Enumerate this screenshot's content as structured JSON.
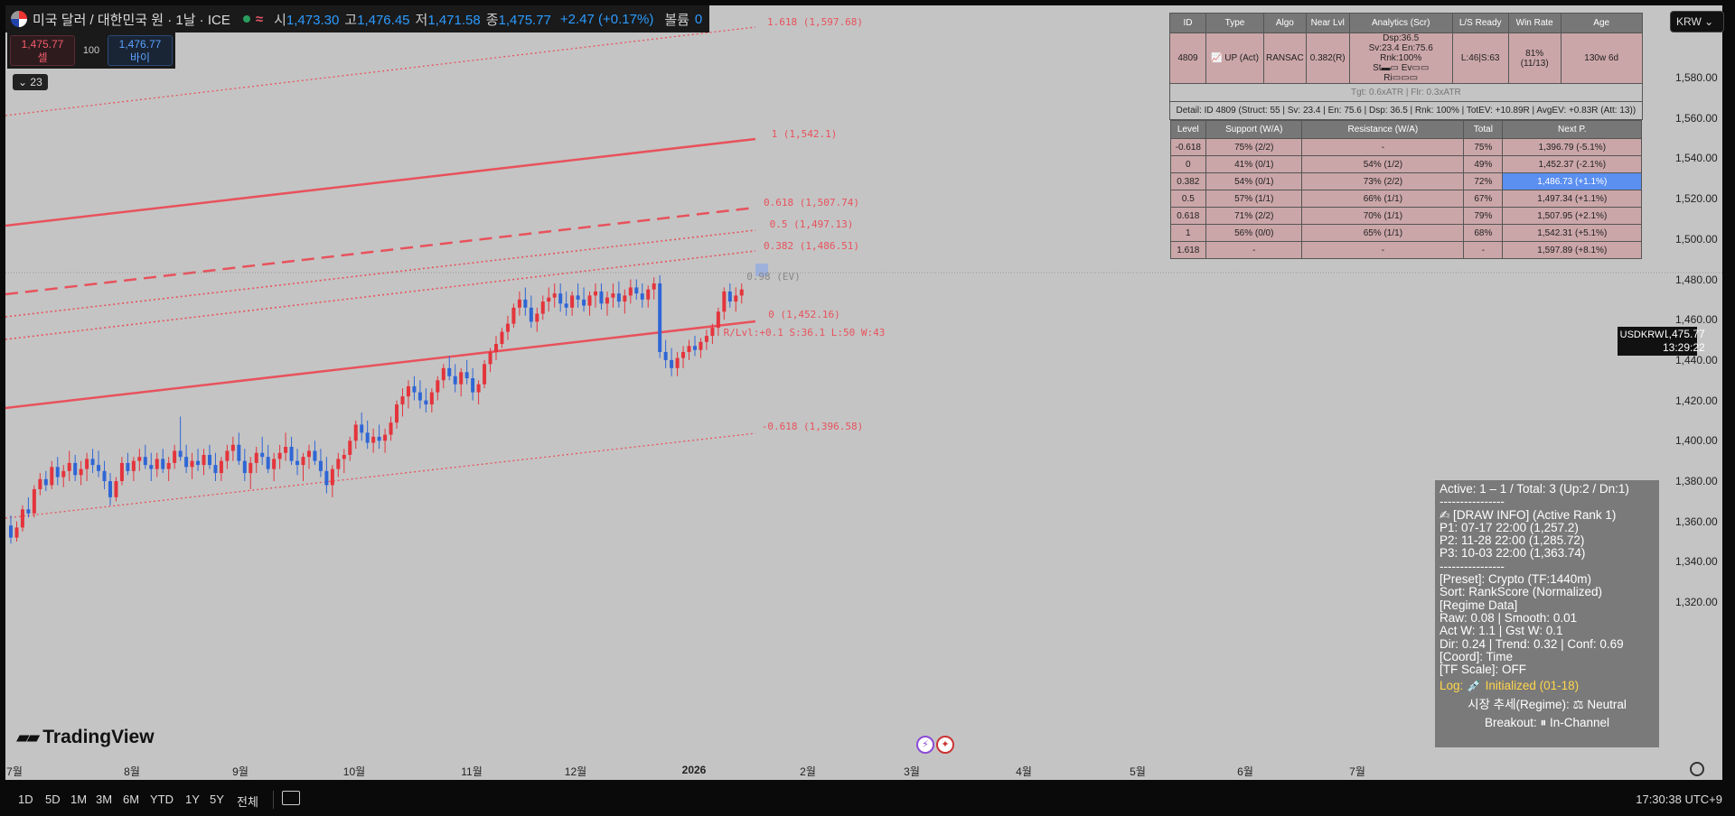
{
  "header": {
    "symbol": "미국 달러 / 대한민국 원 · 1날 · ICE",
    "wave": "≈",
    "ohlc": [
      {
        "label": "시",
        "value": "1,473.30"
      },
      {
        "label": "고",
        "value": "1,476.45"
      },
      {
        "label": "저",
        "value": "1,471.58"
      },
      {
        "label": "종",
        "value": "1,475.77"
      }
    ],
    "change": "+2.47 (+0.17%)",
    "volume_label": "볼륨",
    "volume_value": "0"
  },
  "trade": {
    "sell_price": "1,475.77",
    "sell_label": "셀",
    "qty": "100",
    "buy_price": "1,476.77",
    "buy_label": "바이"
  },
  "collapse_label": "23",
  "currency": "KRW",
  "current": {
    "symbol": "USDKRW",
    "price": "1,475.77",
    "countdown": "13:29:22"
  },
  "price_axis": [
    "1,580.00",
    "1,560.00",
    "1,540.00",
    "1,520.00",
    "1,500.00",
    "1,480.00",
    "1,460.00",
    "1,440.00",
    "1,420.00",
    "1,400.00",
    "1,380.00",
    "1,360.00",
    "1,340.00",
    "1,320.00"
  ],
  "time_axis": [
    {
      "label": "7월"
    },
    {
      "label": "8월"
    },
    {
      "label": "9월"
    },
    {
      "label": "10월"
    },
    {
      "label": "11월"
    },
    {
      "label": "12월"
    },
    {
      "label": "2026",
      "bold": true
    },
    {
      "label": "2월"
    },
    {
      "label": "3월"
    },
    {
      "label": "4월"
    },
    {
      "label": "5월"
    },
    {
      "label": "6월"
    },
    {
      "label": "7월"
    }
  ],
  "toolbar": {
    "timeframes": [
      "1D",
      "5D",
      "1M",
      "3M",
      "6M",
      "YTD",
      "1Y",
      "5Y",
      "전체"
    ],
    "clock": "17:30:38 UTC+9"
  },
  "fib_labels": [
    "1.618 (1,597.68)",
    "1 (1,542.1)",
    "0.618 (1,507.74)",
    "0.5 (1,497.13)",
    "0.382 (1,486.51)",
    "0 (1,452.16)",
    "R/Lvl:+0.1 S:36.1 L:50 W:43",
    "-0.618 (1,396.58)",
    "0.98 (EV)"
  ],
  "analytics": {
    "headers": [
      "ID",
      "Type",
      "Algo",
      "Near Lvl",
      "Analytics (Scr)",
      "L/S Ready",
      "Win Rate",
      "Age"
    ],
    "row": {
      "id": "4809",
      "type": "📈 UP (Act)",
      "algo": "RANSAC",
      "near": "0.382(R)",
      "scr_1": "Dsp:36.5",
      "scr_2": "Sv:23.4 En:75.6 Rnk:100%",
      "scr_3": "St▬▭ Ev▭▭",
      "scr_4": "Ri▭▭▭",
      "ls": "L:46|S:63",
      "win": "81% (11/13)",
      "age": "130w 6d"
    },
    "target": "Tgt: 0.6xATR | Flr: 0.3xATR",
    "detail": "Detail: ID 4809 (Struct: 55 | Sv: 23.4 | En: 75.6 | Dsp: 36.5 | Rnk: 100% | TotEV: +10.89R | AvgEV: +0.83R (Att: 13))",
    "level_headers": [
      "Level",
      "Support (W/A)",
      "Resistance (W/A)",
      "Total",
      "Next P."
    ],
    "levels": [
      [
        "-0.618",
        "75% (2/2)",
        "-",
        "75%",
        "1,396.79 (-5.1%)"
      ],
      [
        "0",
        "41% (0/1)",
        "54% (1/2)",
        "49%",
        "1,452.37 (-2.1%)"
      ],
      [
        "0.382",
        "54% (0/1)",
        "73% (2/2)",
        "72%",
        "1,486.73 (+1.1%)"
      ],
      [
        "0.5",
        "57% (1/1)",
        "66% (1/1)",
        "67%",
        "1,497.34 (+1.1%)"
      ],
      [
        "0.618",
        "71% (2/2)",
        "70% (1/1)",
        "79%",
        "1,507.95 (+2.1%)"
      ],
      [
        "1",
        "56% (0/0)",
        "65% (1/1)",
        "68%",
        "1,542.31 (+5.1%)"
      ],
      [
        "1.618",
        "-",
        "-",
        "-",
        "1,597.89 (+8.1%)"
      ]
    ],
    "highlight_row": 2
  },
  "info": {
    "lines": [
      "Active: 1 – 1 / Total: 3 (Up:2 / Dn:1)",
      "----------------",
      "✍ [DRAW INFO] (Active Rank 1)",
      "P1: 07-17 22:00 (1,257.2)",
      "P2: 11-28 22:00 (1,285.72)",
      "P3: 10-03 22:00 (1,363.74)",
      "----------------",
      "[Preset]: Crypto (TF:1440m)",
      "Sort: RankScore (Normalized)",
      "[Regime Data]",
      "Raw: 0.08 | Smooth: 0.01",
      "Act W: 1.1 | Gst W: 0.1",
      "Dir: 0.24 | Trend: 0.32 | Conf: 0.69",
      "[Coord]: Time",
      "[TF Scale]: OFF"
    ],
    "log_label": "Log:",
    "log_value": "💉 Initialized (01-18)",
    "regime": "시장 추세(Regime): ⚖ Neutral",
    "breakout": "Breakout: ⏸ In-Channel"
  },
  "brand": "TradingView",
  "colors": {
    "up": "#e4343c",
    "down": "#2f66d6",
    "fib": "#e8525c",
    "panel": "#7a7a7a",
    "highlight": "#5b8ff0"
  },
  "chart_data": {
    "type": "candlestick",
    "price_range": [
      1310,
      1600
    ],
    "start_month": "7월",
    "ohlc": [
      [
        1358,
        1363,
        1349,
        1352
      ],
      [
        1352,
        1360,
        1350,
        1357
      ],
      [
        1357,
        1368,
        1355,
        1366
      ],
      [
        1366,
        1372,
        1362,
        1364
      ],
      [
        1364,
        1378,
        1362,
        1376
      ],
      [
        1376,
        1384,
        1373,
        1381
      ],
      [
        1381,
        1385,
        1375,
        1378
      ],
      [
        1378,
        1390,
        1376,
        1387
      ],
      [
        1387,
        1392,
        1378,
        1382
      ],
      [
        1382,
        1388,
        1377,
        1385
      ],
      [
        1385,
        1395,
        1380,
        1389
      ],
      [
        1389,
        1393,
        1380,
        1383
      ],
      [
        1383,
        1390,
        1378,
        1386
      ],
      [
        1386,
        1394,
        1380,
        1391
      ],
      [
        1391,
        1396,
        1384,
        1388
      ],
      [
        1388,
        1395,
        1382,
        1385
      ],
      [
        1385,
        1390,
        1376,
        1380
      ],
      [
        1380,
        1384,
        1368,
        1372
      ],
      [
        1372,
        1382,
        1370,
        1380
      ],
      [
        1380,
        1392,
        1378,
        1389
      ],
      [
        1389,
        1394,
        1383,
        1385
      ],
      [
        1385,
        1392,
        1380,
        1390
      ],
      [
        1390,
        1396,
        1385,
        1392
      ],
      [
        1392,
        1398,
        1386,
        1388
      ],
      [
        1388,
        1394,
        1380,
        1386
      ],
      [
        1386,
        1394,
        1382,
        1391
      ],
      [
        1391,
        1396,
        1384,
        1386
      ],
      [
        1386,
        1392,
        1380,
        1389
      ],
      [
        1389,
        1398,
        1386,
        1395
      ],
      [
        1395,
        1412,
        1390,
        1392
      ],
      [
        1392,
        1398,
        1384,
        1387
      ],
      [
        1387,
        1394,
        1381,
        1390
      ],
      [
        1390,
        1396,
        1385,
        1388
      ],
      [
        1388,
        1396,
        1383,
        1393
      ],
      [
        1393,
        1398,
        1386,
        1388
      ],
      [
        1388,
        1394,
        1380,
        1384
      ],
      [
        1384,
        1392,
        1380,
        1390
      ],
      [
        1390,
        1398,
        1386,
        1395
      ],
      [
        1395,
        1402,
        1390,
        1398
      ],
      [
        1398,
        1404,
        1388,
        1390
      ],
      [
        1390,
        1396,
        1380,
        1384
      ],
      [
        1384,
        1392,
        1376,
        1389
      ],
      [
        1389,
        1397,
        1384,
        1394
      ],
      [
        1394,
        1402,
        1388,
        1392
      ],
      [
        1392,
        1398,
        1384,
        1386
      ],
      [
        1386,
        1394,
        1380,
        1391
      ],
      [
        1391,
        1398,
        1386,
        1394
      ],
      [
        1394,
        1404,
        1390,
        1397
      ],
      [
        1397,
        1402,
        1388,
        1390
      ],
      [
        1390,
        1396,
        1383,
        1388
      ],
      [
        1388,
        1394,
        1380,
        1392
      ],
      [
        1392,
        1398,
        1386,
        1395
      ],
      [
        1395,
        1400,
        1388,
        1390
      ],
      [
        1390,
        1396,
        1382,
        1385
      ],
      [
        1385,
        1392,
        1374,
        1378
      ],
      [
        1378,
        1388,
        1372,
        1386
      ],
      [
        1386,
        1394,
        1382,
        1391
      ],
      [
        1391,
        1396,
        1384,
        1393
      ],
      [
        1393,
        1402,
        1390,
        1400
      ],
      [
        1400,
        1410,
        1396,
        1408
      ],
      [
        1408,
        1414,
        1400,
        1404
      ],
      [
        1404,
        1410,
        1396,
        1399
      ],
      [
        1399,
        1406,
        1394,
        1402
      ],
      [
        1402,
        1408,
        1396,
        1400
      ],
      [
        1400,
        1406,
        1394,
        1403
      ],
      [
        1403,
        1412,
        1400,
        1409
      ],
      [
        1409,
        1420,
        1406,
        1418
      ],
      [
        1418,
        1426,
        1412,
        1422
      ],
      [
        1422,
        1430,
        1416,
        1427
      ],
      [
        1427,
        1432,
        1420,
        1424
      ],
      [
        1424,
        1430,
        1416,
        1420
      ],
      [
        1420,
        1426,
        1414,
        1418
      ],
      [
        1418,
        1426,
        1414,
        1424
      ],
      [
        1424,
        1432,
        1420,
        1430
      ],
      [
        1430,
        1438,
        1426,
        1436
      ],
      [
        1436,
        1442,
        1430,
        1432
      ],
      [
        1432,
        1438,
        1424,
        1428
      ],
      [
        1428,
        1436,
        1422,
        1434
      ],
      [
        1434,
        1440,
        1428,
        1431
      ],
      [
        1431,
        1436,
        1420,
        1424
      ],
      [
        1424,
        1430,
        1418,
        1428
      ],
      [
        1428,
        1440,
        1426,
        1438
      ],
      [
        1438,
        1446,
        1434,
        1444
      ],
      [
        1444,
        1452,
        1440,
        1448
      ],
      [
        1448,
        1456,
        1446,
        1454
      ],
      [
        1454,
        1462,
        1450,
        1458
      ],
      [
        1458,
        1468,
        1456,
        1466
      ],
      [
        1466,
        1474,
        1462,
        1470
      ],
      [
        1470,
        1476,
        1462,
        1466
      ],
      [
        1466,
        1472,
        1456,
        1459
      ],
      [
        1459,
        1466,
        1454,
        1463
      ],
      [
        1463,
        1472,
        1460,
        1469
      ],
      [
        1469,
        1476,
        1464,
        1471
      ],
      [
        1471,
        1478,
        1466,
        1473
      ],
      [
        1473,
        1478,
        1464,
        1468
      ],
      [
        1468,
        1474,
        1462,
        1466
      ],
      [
        1466,
        1474,
        1462,
        1472
      ],
      [
        1472,
        1478,
        1466,
        1470
      ],
      [
        1470,
        1476,
        1464,
        1467
      ],
      [
        1467,
        1474,
        1462,
        1472
      ],
      [
        1472,
        1478,
        1466,
        1474
      ],
      [
        1474,
        1478,
        1465,
        1468
      ],
      [
        1468,
        1474,
        1462,
        1471
      ],
      [
        1471,
        1478,
        1466,
        1473
      ],
      [
        1473,
        1479,
        1466,
        1469
      ],
      [
        1469,
        1475,
        1463,
        1472
      ],
      [
        1472,
        1480,
        1468,
        1476
      ],
      [
        1476,
        1480,
        1470,
        1473
      ],
      [
        1473,
        1478,
        1466,
        1470
      ],
      [
        1470,
        1477,
        1466,
        1475
      ],
      [
        1475,
        1481,
        1470,
        1478
      ],
      [
        1478,
        1482,
        1441,
        1444
      ],
      [
        1444,
        1450,
        1436,
        1440
      ],
      [
        1440,
        1446,
        1432,
        1436
      ],
      [
        1436,
        1444,
        1432,
        1441
      ],
      [
        1441,
        1447,
        1436,
        1444
      ],
      [
        1444,
        1450,
        1440,
        1447
      ],
      [
        1447,
        1452,
        1442,
        1445
      ],
      [
        1445,
        1451,
        1441,
        1449
      ],
      [
        1449,
        1455,
        1445,
        1452
      ],
      [
        1452,
        1458,
        1448,
        1456
      ],
      [
        1456,
        1466,
        1452,
        1464
      ],
      [
        1464,
        1476,
        1460,
        1474
      ],
      [
        1474,
        1478,
        1466,
        1469
      ],
      [
        1469,
        1476,
        1464,
        1472
      ],
      [
        1472,
        1478,
        1468,
        1475
      ]
    ]
  }
}
